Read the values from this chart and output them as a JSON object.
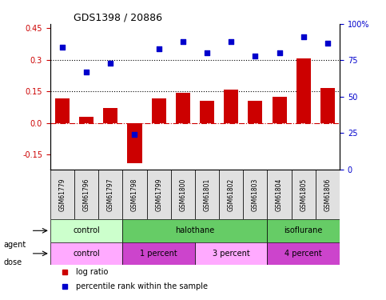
{
  "title": "GDS1398 / 20886",
  "samples": [
    "GSM61779",
    "GSM61796",
    "GSM61797",
    "GSM61798",
    "GSM61799",
    "GSM61800",
    "GSM61801",
    "GSM61802",
    "GSM61803",
    "GSM61804",
    "GSM61805",
    "GSM61806"
  ],
  "log_ratio": [
    0.115,
    0.03,
    0.07,
    -0.19,
    0.115,
    0.145,
    0.105,
    0.16,
    0.105,
    0.125,
    0.305,
    0.165
  ],
  "percentile_rank": [
    84,
    67,
    73,
    24,
    83,
    88,
    80,
    88,
    78,
    80,
    91,
    87
  ],
  "ylim_left": [
    -0.22,
    0.47
  ],
  "ylim_right": [
    0,
    100
  ],
  "yticks_left": [
    -0.15,
    0.0,
    0.15,
    0.3,
    0.45
  ],
  "yticks_right": [
    0,
    25,
    50,
    75,
    100
  ],
  "hlines": [
    0.15,
    0.3
  ],
  "bar_color": "#cc0000",
  "scatter_color": "#0000cc",
  "zero_line_color": "#cc0000",
  "agent_groups": [
    {
      "label": "control",
      "start": 0,
      "end": 3,
      "color": "#99ff99"
    },
    {
      "label": "halothane",
      "start": 3,
      "end": 9,
      "color": "#44cc44"
    },
    {
      "label": "isoflurane",
      "start": 9,
      "end": 12,
      "color": "#44cc44"
    }
  ],
  "dose_groups": [
    {
      "label": "control",
      "start": 0,
      "end": 3,
      "color": "#ffaaff"
    },
    {
      "label": "1 percent",
      "start": 3,
      "end": 6,
      "color": "#dd66dd"
    },
    {
      "label": "3 percent",
      "start": 6,
      "end": 9,
      "color": "#ffaaff"
    },
    {
      "label": "4 percent",
      "start": 9,
      "end": 12,
      "color": "#dd66dd"
    }
  ],
  "legend_items": [
    {
      "label": "log ratio",
      "color": "#cc0000"
    },
    {
      "label": "percentile rank within the sample",
      "color": "#0000cc"
    }
  ]
}
